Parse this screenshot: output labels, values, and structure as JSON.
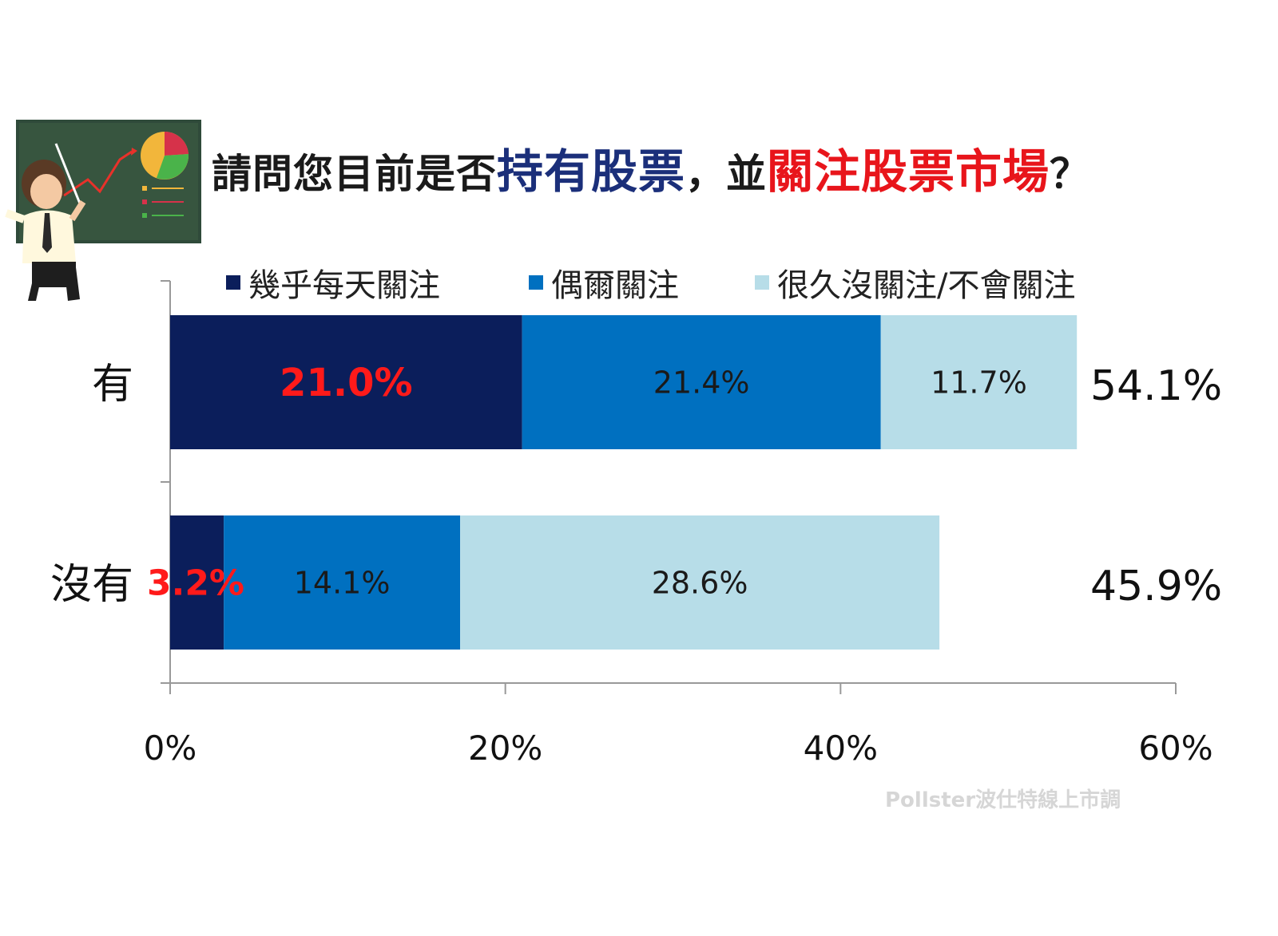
{
  "header": {
    "title_part1": "請問您目前是否",
    "title_part2": "持有股票",
    "title_part3": "，並",
    "title_part4": "關注股票市場",
    "title_part5": "？"
  },
  "watermark": "Pollster波仕特線上市調",
  "colors": {
    "dark_navy": "#0b1e5b",
    "mid_blue": "#0070c0",
    "light_blue": "#b7dde8",
    "highlight_red": "#ff1a1a"
  },
  "chart_data": {
    "type": "bar",
    "orientation": "horizontal",
    "stacked": true,
    "categories": [
      "有",
      "沒有"
    ],
    "series": [
      {
        "name": "幾乎每天關注",
        "values": [
          21.0,
          3.2
        ],
        "labels": [
          "21.0%",
          "3.2%"
        ],
        "color": "#0b1e5b",
        "label_color": "#ff1a1a"
      },
      {
        "name": "偶爾關注",
        "values": [
          21.4,
          14.1
        ],
        "labels": [
          "21.4%",
          "14.1%"
        ],
        "color": "#0070c0",
        "label_color": "#1a1a1a"
      },
      {
        "name": "很久沒關注/不會關注",
        "values": [
          11.7,
          28.6
        ],
        "labels": [
          "11.7%",
          "28.6%"
        ],
        "color": "#b7dde8",
        "label_color": "#1a1a1a"
      }
    ],
    "totals": [
      "54.1%",
      "45.9%"
    ],
    "xlim": [
      0,
      60
    ],
    "xticks": [
      0,
      20,
      40,
      60
    ],
    "xtick_labels": [
      "0%",
      "20%",
      "40%",
      "60%"
    ],
    "legend_position": "top",
    "grid": false
  }
}
